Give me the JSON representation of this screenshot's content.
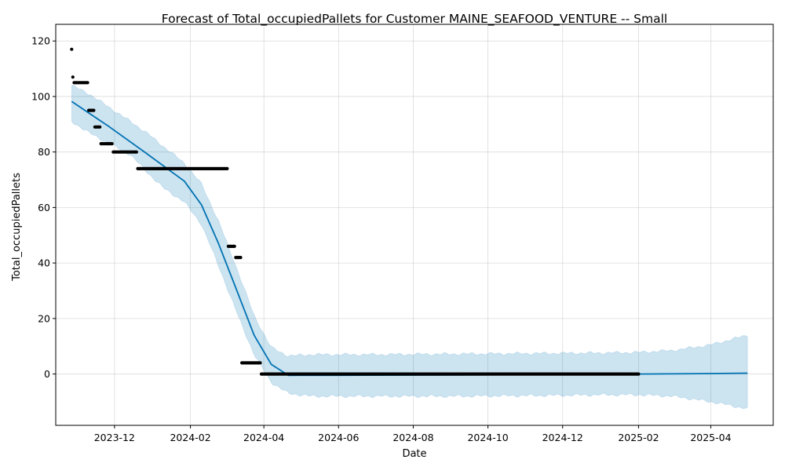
{
  "chart_data": {
    "type": "line",
    "title": "Forecast of Total_occupiedPallets for Customer MAINE_SEAFOOD_VENTURE -- Small",
    "xlabel": "Date",
    "ylabel": "Total_occupiedPallets",
    "xlim": [
      "2023-10-14",
      "2025-05-22"
    ],
    "ylim": [
      -18.5,
      126
    ],
    "grid": true,
    "x_ticks": [
      {
        "date": "2023-12-01",
        "label": "2023-12"
      },
      {
        "date": "2024-02-01",
        "label": "2024-02"
      },
      {
        "date": "2024-04-01",
        "label": "2024-04"
      },
      {
        "date": "2024-06-01",
        "label": "2024-06"
      },
      {
        "date": "2024-08-01",
        "label": "2024-08"
      },
      {
        "date": "2024-10-01",
        "label": "2024-10"
      },
      {
        "date": "2024-12-01",
        "label": "2024-12"
      },
      {
        "date": "2025-02-01",
        "label": "2025-02"
      },
      {
        "date": "2025-04-01",
        "label": "2025-04"
      }
    ],
    "y_ticks": [
      0,
      20,
      40,
      60,
      80,
      100,
      120
    ],
    "colors": {
      "forecast": "#0072b2",
      "interval": "#0072b2",
      "observed": "#000000",
      "grid": "#cccccc"
    },
    "forecast": {
      "x": [
        "2023-10-27",
        "2023-11-27",
        "2023-12-27",
        "2024-01-27",
        "2024-02-10",
        "2024-02-24",
        "2024-03-10",
        "2024-03-24",
        "2024-04-07",
        "2024-04-21",
        "2024-06-01",
        "2024-09-01",
        "2024-12-01",
        "2025-02-01",
        "2025-04-01",
        "2025-05-01"
      ],
      "y": [
        98.2,
        89.0,
        79.5,
        69.5,
        61.0,
        47.0,
        30.0,
        14.0,
        3.5,
        -0.5,
        -0.45,
        -0.35,
        -0.2,
        0.0,
        0.15,
        0.3
      ]
    },
    "interval": {
      "x": [
        "2023-10-27",
        "2023-11-10",
        "2023-11-27",
        "2023-12-14",
        "2023-12-27",
        "2024-01-10",
        "2024-01-27",
        "2024-02-10",
        "2024-02-24",
        "2024-03-10",
        "2024-03-24",
        "2024-04-07",
        "2024-04-21",
        "2024-05-10",
        "2024-07-01",
        "2024-09-01",
        "2024-11-01",
        "2025-01-01",
        "2025-02-01",
        "2025-03-01",
        "2025-04-01",
        "2025-05-01"
      ],
      "upper": [
        104.0,
        101.0,
        96.0,
        91.0,
        87.0,
        82.0,
        76.0,
        68.5,
        55.0,
        38.0,
        21.0,
        9.5,
        6.5,
        7.0,
        7.0,
        7.2,
        7.4,
        7.6,
        7.8,
        8.5,
        10.5,
        14.0
      ],
      "lower": [
        91.0,
        87.0,
        83.0,
        79.0,
        73.0,
        67.0,
        62.0,
        54.0,
        39.0,
        22.0,
        7.0,
        -3.0,
        -7.0,
        -8.0,
        -8.0,
        -8.0,
        -7.8,
        -7.5,
        -7.5,
        -8.0,
        -10.0,
        -12.5
      ]
    },
    "observed": [
      {
        "x": [
          "2023-10-27"
        ],
        "y": 117
      },
      {
        "x": [
          "2023-10-28"
        ],
        "y": 107
      },
      {
        "x": [
          "2023-10-29",
          "2023-10-30",
          "2023-10-31",
          "2023-11-01",
          "2023-11-02",
          "2023-11-03",
          "2023-11-04",
          "2023-11-05",
          "2023-11-06",
          "2023-11-07",
          "2023-11-08",
          "2023-11-09"
        ],
        "y": 105
      },
      {
        "x": [
          "2023-11-10",
          "2023-11-11",
          "2023-11-12",
          "2023-11-13",
          "2023-11-14"
        ],
        "y": 95
      },
      {
        "x": [
          "2023-11-15",
          "2023-11-16",
          "2023-11-17",
          "2023-11-18",
          "2023-11-19"
        ],
        "y": 89
      },
      {
        "x": [
          "2023-11-20",
          "2023-11-21",
          "2023-11-22",
          "2023-11-23",
          "2023-11-24",
          "2023-11-25",
          "2023-11-26",
          "2023-11-27",
          "2023-11-28",
          "2023-11-29"
        ],
        "y": 83
      },
      {
        "x": [
          "2023-11-30",
          "2023-12-01",
          "2023-12-02",
          "2023-12-03",
          "2023-12-04",
          "2023-12-05",
          "2023-12-06",
          "2023-12-07",
          "2023-12-08",
          "2023-12-09",
          "2023-12-10",
          "2023-12-11",
          "2023-12-12",
          "2023-12-13",
          "2023-12-14",
          "2023-12-15",
          "2023-12-16",
          "2023-12-17",
          "2023-12-18",
          "2023-12-19"
        ],
        "y": 80
      },
      {
        "range": [
          "2023-12-20",
          "2024-03-02"
        ],
        "y": 74
      },
      {
        "range": [
          "2024-03-03",
          "2024-03-08"
        ],
        "y": 46
      },
      {
        "range": [
          "2024-03-09",
          "2024-03-13"
        ],
        "y": 42
      },
      {
        "range": [
          "2024-03-14",
          "2024-03-29"
        ],
        "y": 4
      },
      {
        "range": [
          "2024-03-30",
          "2025-02-01"
        ],
        "y": 0
      }
    ]
  }
}
